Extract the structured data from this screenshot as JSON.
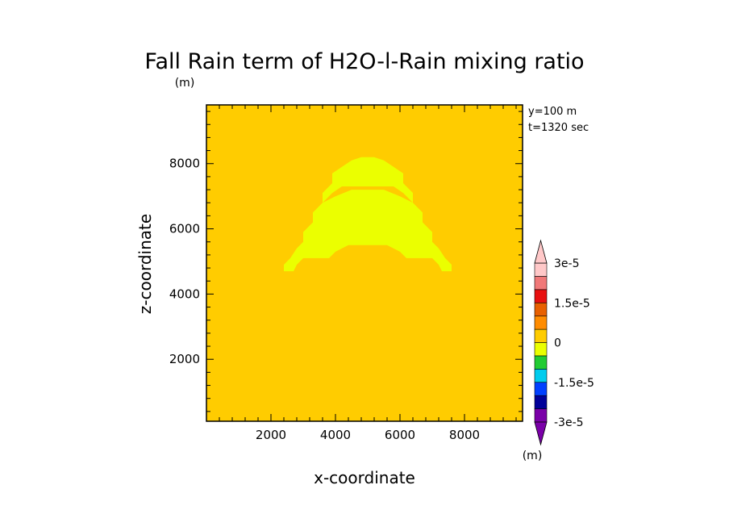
{
  "chart_data": {
    "type": "heatmap",
    "title": "Fall Rain term of H2O-l-Rain mixing ratio",
    "title_unit": "(m)",
    "xlabel": "x-coordinate",
    "ylabel": "z-coordinate",
    "xlim": [
      0,
      9800
    ],
    "ylim": [
      100,
      9800
    ],
    "xticks": [
      2000,
      4000,
      6000,
      8000
    ],
    "yticks": [
      2000,
      4000,
      6000,
      8000
    ],
    "annotations": [
      "y=100 m",
      "t=1320 sec"
    ],
    "background_value": 0,
    "colors": {
      "background": "#FFCC00",
      "positive_small": "#EBFF00"
    },
    "regions": [
      {
        "value_range": "0 to 7.5e-6",
        "color": "#EBFF00",
        "outer": [
          [
            2400,
            4700
          ],
          [
            2400,
            4900
          ],
          [
            2600,
            5100
          ],
          [
            2800,
            5400
          ],
          [
            3000,
            5600
          ],
          [
            3000,
            5900
          ],
          [
            3300,
            6200
          ],
          [
            3300,
            6500
          ],
          [
            3600,
            6800
          ],
          [
            3600,
            7100
          ],
          [
            3900,
            7400
          ],
          [
            3900,
            7700
          ],
          [
            4200,
            7900
          ],
          [
            4500,
            8100
          ],
          [
            4800,
            8200
          ],
          [
            5200,
            8200
          ],
          [
            5500,
            8100
          ],
          [
            5800,
            7900
          ],
          [
            6100,
            7700
          ],
          [
            6100,
            7400
          ],
          [
            6400,
            7100
          ],
          [
            6400,
            6800
          ],
          [
            6700,
            6500
          ],
          [
            6700,
            6200
          ],
          [
            7000,
            5900
          ],
          [
            7000,
            5600
          ],
          [
            7200,
            5400
          ],
          [
            7400,
            5100
          ],
          [
            7600,
            4900
          ],
          [
            7600,
            4700
          ],
          [
            7300,
            4700
          ],
          [
            7200,
            4900
          ],
          [
            7000,
            5100
          ],
          [
            6200,
            5100
          ],
          [
            6000,
            5300
          ],
          [
            5600,
            5500
          ],
          [
            4400,
            5500
          ],
          [
            4000,
            5300
          ],
          [
            3800,
            5100
          ],
          [
            3000,
            5100
          ],
          [
            2800,
            4900
          ],
          [
            2700,
            4700
          ]
        ],
        "holes": [
          [
            [
              3600,
              6800
            ],
            [
              3900,
              7100
            ],
            [
              4200,
              7300
            ],
            [
              5800,
              7300
            ],
            [
              6100,
              7100
            ],
            [
              6400,
              6800
            ],
            [
              6000,
              7000
            ],
            [
              5500,
              7200
            ],
            [
              4500,
              7200
            ],
            [
              4000,
              7000
            ]
          ]
        ]
      }
    ],
    "colorbar": {
      "unit": "(m)",
      "labels": [
        {
          "value": 3e-05,
          "text": "3e-5"
        },
        {
          "value": 1.5e-05,
          "text": "1.5e-5"
        },
        {
          "value": 0,
          "text": "0"
        },
        {
          "value": -1.5e-05,
          "text": "-1.5e-5"
        },
        {
          "value": -3e-05,
          "text": "-3e-5"
        }
      ],
      "boundaries": [
        -3e-05,
        -2.25e-05,
        -1.5e-05,
        -7.5e-06,
        0,
        7.5e-06,
        1.5e-05,
        2.25e-05,
        3e-05
      ],
      "colors": [
        "#8800AA",
        "#0000AA",
        "#0044FF",
        "#00CCEE",
        "#00CC44",
        "#EBFF00",
        "#FFCC00",
        "#FF8800",
        "#EE5500",
        "#EE1111",
        "#F08080",
        "#FFBBBB"
      ],
      "segment_colors": [
        "#7A00A8",
        "#000099",
        "#0040FF",
        "#00CCEE",
        "#22CC33",
        "#EBFF00",
        "#FFCC00",
        "#FF8C00",
        "#E86000",
        "#E81010",
        "#F07878",
        "#FFC8C8"
      ],
      "extend": "both"
    }
  }
}
